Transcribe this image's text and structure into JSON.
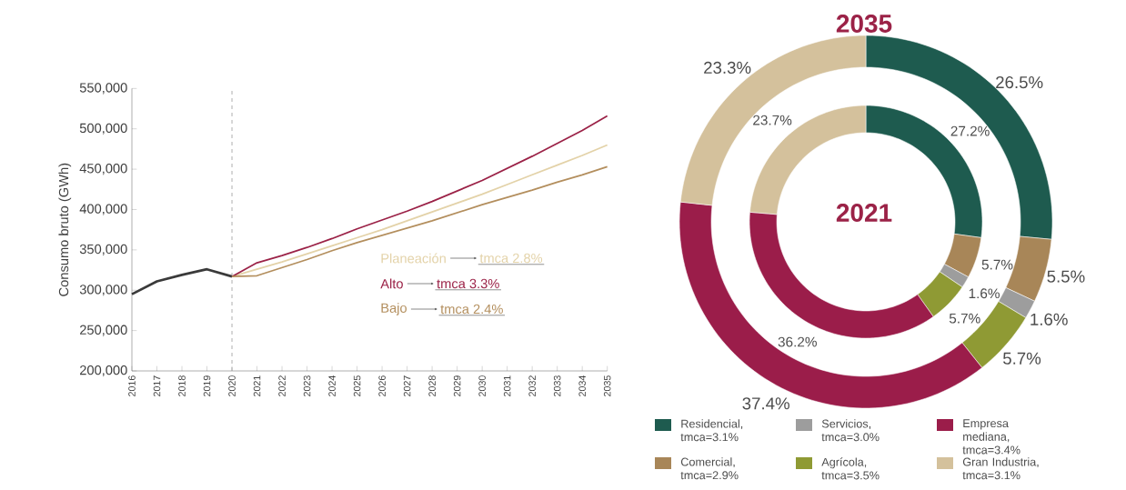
{
  "chart_data": [
    {
      "type": "line",
      "ylabel": "Consumo bruto (GWh)",
      "xlim": [
        2016,
        2035
      ],
      "ylim": [
        200000,
        550000
      ],
      "xticks": [
        2016,
        2017,
        2018,
        2019,
        2020,
        2021,
        2022,
        2023,
        2024,
        2025,
        2026,
        2027,
        2028,
        2029,
        2030,
        2031,
        2032,
        2033,
        2034,
        2035
      ],
      "yticks": [
        {
          "value": 200000,
          "label": "200,000"
        },
        {
          "value": 250000,
          "label": "250,000"
        },
        {
          "value": 300000,
          "label": "300,000"
        },
        {
          "value": 350000,
          "label": "350,000"
        },
        {
          "value": 400000,
          "label": "400,000"
        },
        {
          "value": 450000,
          "label": "450,000"
        },
        {
          "value": 500000,
          "label": "500,000"
        },
        {
          "value": 550000,
          "label": "550,000"
        }
      ],
      "series": [
        {
          "color": "#3a3a3a",
          "x": [
            2016,
            2017,
            2018,
            2019,
            2020
          ],
          "values": [
            295000,
            311000,
            319000,
            326000,
            317000
          ]
        },
        {
          "name": "Planeación",
          "color": "#e3d2a8",
          "x": [
            2020,
            2021,
            2022,
            2023,
            2024,
            2025,
            2026,
            2027,
            2028,
            2029,
            2030,
            2031,
            2032,
            2033,
            2034,
            2035
          ],
          "values": [
            317000,
            326000,
            335000,
            345000,
            355000,
            365000,
            375000,
            386000,
            397000,
            408000,
            419000,
            431000,
            443000,
            455000,
            467000,
            480000
          ]
        },
        {
          "name": "Alto",
          "color": "#9b2247",
          "x": [
            2020,
            2021,
            2022,
            2023,
            2024,
            2025,
            2026,
            2027,
            2028,
            2029,
            2030,
            2031,
            2032,
            2033,
            2034,
            2035
          ],
          "values": [
            317000,
            334000,
            343000,
            353000,
            364000,
            376000,
            387000,
            398000,
            410000,
            423000,
            436000,
            451000,
            466000,
            482000,
            498000,
            516000
          ]
        },
        {
          "name": "Bajo",
          "color": "#b38e5d",
          "x": [
            2020,
            2021,
            2022,
            2023,
            2024,
            2025,
            2026,
            2027,
            2028,
            2029,
            2030,
            2031,
            2032,
            2033,
            2034,
            2035
          ],
          "values": [
            317000,
            318000,
            328000,
            338000,
            349000,
            359000,
            368000,
            377000,
            386000,
            396000,
            406000,
            415000,
            424000,
            434000,
            443000,
            453000
          ]
        }
      ],
      "annotations": [
        "tmca 2.8%",
        "tmca 3.3%",
        "tmca 2.4%"
      ],
      "ref_lines": [
        {
          "axis": "x",
          "value": 2020,
          "color": "#9a9a9a",
          "line_style": "dashed"
        }
      ]
    },
    {
      "type": "donut",
      "categories": [
        "Residencial, tmca=3.1%",
        "Comercial, tmca=2.9%",
        "Servicios, tmca=3.0%",
        "Agrícola, tmca=3.5%",
        "Empresa mediana, tmca=3.4%",
        "Gran Industria, tmca=3.1%"
      ],
      "colors": [
        "#1e5b4f",
        "#a88658",
        "#9d9d9d",
        "#8f9a34",
        "#9b1d4a",
        "#d4c19c"
      ],
      "series": [
        {
          "name": "2035",
          "values": [
            26.5,
            5.5,
            1.6,
            5.7,
            37.4,
            23.3
          ],
          "value_labels": [
            "26.5%",
            "5.5%",
            "1.6%",
            "5.7%",
            "37.4%",
            "23.3%"
          ]
        },
        {
          "name": "2021",
          "values": [
            27.2,
            5.7,
            1.6,
            5.7,
            36.2,
            23.7
          ],
          "value_labels": [
            "27.2%",
            "5.7%",
            "1.6%",
            "5.7%",
            "36.2%",
            "23.7%"
          ]
        }
      ],
      "legend": "bottom"
    }
  ]
}
